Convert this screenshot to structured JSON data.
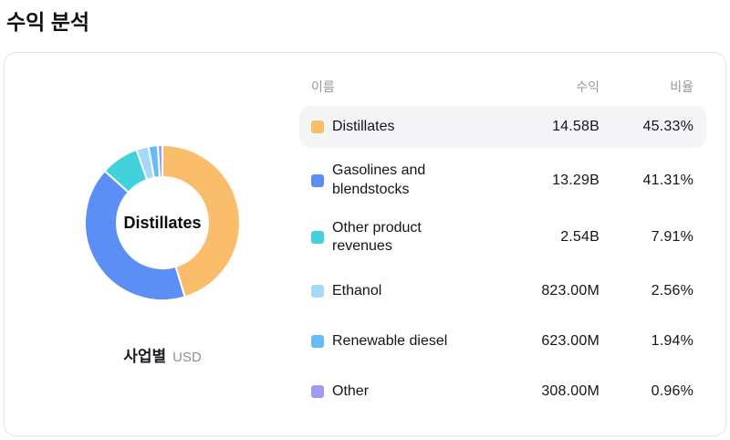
{
  "page": {
    "title": "수익 분석"
  },
  "card": {
    "donut_center_label": "Distillates",
    "caption": {
      "label": "사업별",
      "unit": "USD"
    }
  },
  "table": {
    "headers": {
      "name": "이름",
      "revenue": "수익",
      "ratio": "비율"
    },
    "rows": [
      {
        "name": "Distillates",
        "revenue": "14.58B",
        "ratio": "45.33%",
        "color": "#f9bd6c",
        "highlighted": true
      },
      {
        "name": "Gasolines and blendstocks",
        "revenue": "13.29B",
        "ratio": "41.31%",
        "color": "#5b8ff5",
        "highlighted": false
      },
      {
        "name": "Other product revenues",
        "revenue": "2.54B",
        "ratio": "7.91%",
        "color": "#42d2db",
        "highlighted": false
      },
      {
        "name": "Ethanol",
        "revenue": "823.00M",
        "ratio": "2.56%",
        "color": "#a6d8f8",
        "highlighted": false
      },
      {
        "name": "Renewable diesel",
        "revenue": "623.00M",
        "ratio": "1.94%",
        "color": "#65bcf6",
        "highlighted": false
      },
      {
        "name": "Other",
        "revenue": "308.00M",
        "ratio": "0.96%",
        "color": "#a09cf4",
        "highlighted": false
      }
    ]
  },
  "chart_data": {
    "type": "pie",
    "subtype": "donut",
    "title": "수익 분석",
    "grouping_label": "사업별",
    "unit": "USD",
    "center_label": "Distillates",
    "legend_position": "right-table",
    "categories": [
      "Distillates",
      "Gasolines and blendstocks",
      "Other product revenues",
      "Ethanol",
      "Renewable diesel",
      "Other"
    ],
    "values_percent": [
      45.33,
      41.31,
      7.91,
      2.56,
      1.94,
      0.96
    ],
    "values_revenue": [
      "14.58B",
      "13.29B",
      "2.54B",
      "823.00M",
      "623.00M",
      "308.00M"
    ],
    "colors": [
      "#f9bd6c",
      "#5b8ff5",
      "#42d2db",
      "#a6d8f8",
      "#65bcf6",
      "#a09cf4"
    ],
    "start_angle_deg": 0,
    "direction": "clockwise"
  }
}
